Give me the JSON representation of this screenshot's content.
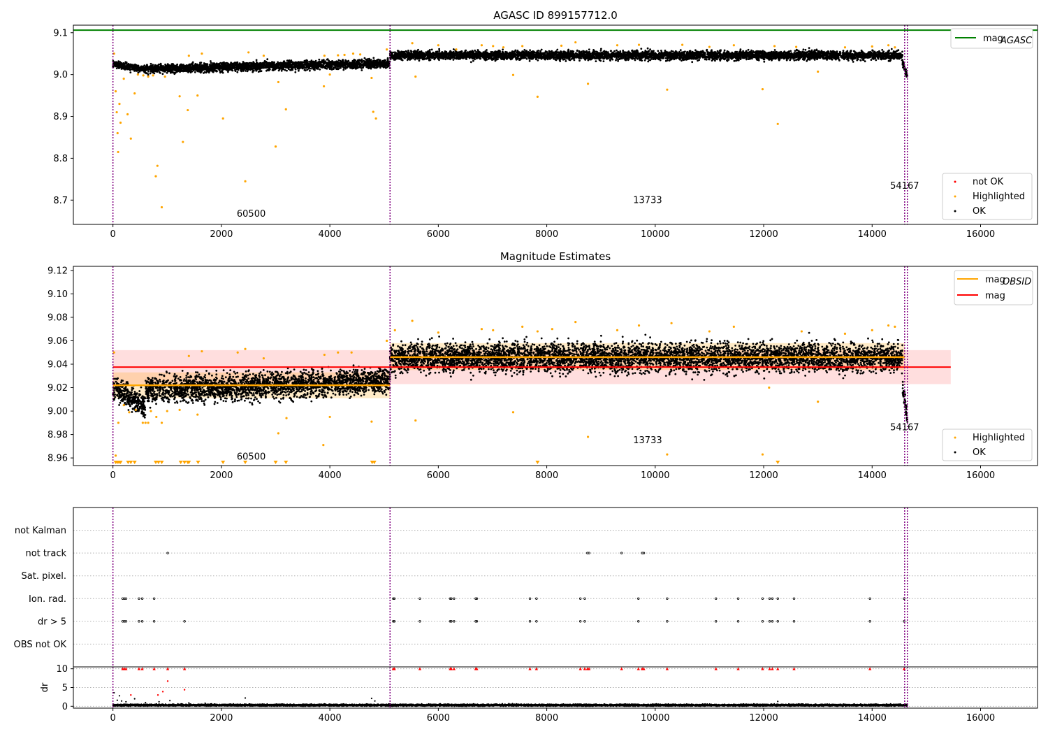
{
  "chart_data": [
    {
      "type": "scatter",
      "title": "AGASC ID 899157712.0",
      "xlim": [
        -730,
        17050
      ],
      "ylim": [
        8.642,
        9.118
      ],
      "xticks": [
        0,
        2000,
        4000,
        6000,
        8000,
        10000,
        12000,
        14000,
        16000
      ],
      "yticks": [
        8.7,
        8.8,
        8.9,
        9.0,
        9.1
      ],
      "ytick_labels": [
        "8.7",
        "8.8",
        "8.9",
        "9.0",
        "9.1"
      ],
      "reference_line": {
        "name": "mag_AGASC",
        "y": 9.106,
        "x": [
          -730,
          17050
        ],
        "color": "#008000"
      },
      "obsid_boundaries": [
        0,
        5110,
        14600,
        14650
      ],
      "obsid_labels": [
        {
          "text": "60500",
          "x": 2550,
          "y": 8.66
        },
        {
          "text": "13733",
          "x": 9860,
          "y": 8.693
        },
        {
          "text": "54167",
          "x": 14600,
          "y": 8.727
        }
      ],
      "series": [
        {
          "name": "OK",
          "color": "#000000",
          "segments": [
            {
              "x": [
                0,
                600
              ],
              "y_start": 9.025,
              "y_end": 9.012,
              "spread": 0.018
            },
            {
              "x": [
                600,
                5110
              ],
              "y_start": 9.014,
              "y_end": 9.027,
              "spread": 0.022
            },
            {
              "x": [
                5110,
                14560
              ],
              "y_start": 9.046,
              "y_end": 9.046,
              "spread": 0.022
            },
            {
              "x": [
                14560,
                14650
              ],
              "y_start": 9.03,
              "y_end": 8.995,
              "spread": 0.015
            }
          ]
        },
        {
          "name": "Highlighted",
          "color": "#ffa500",
          "points": [
            [
              20,
              9.05
            ],
            [
              50,
              8.96
            ],
            [
              70,
              8.91
            ],
            [
              85,
              8.86
            ],
            [
              95,
              8.815
            ],
            [
              120,
              8.93
            ],
            [
              140,
              8.885
            ],
            [
              200,
              8.99
            ],
            [
              270,
              8.905
            ],
            [
              330,
              8.847
            ],
            [
              400,
              8.955
            ],
            [
              460,
              9.0
            ],
            [
              560,
              8.998
            ],
            [
              650,
              8.995
            ],
            [
              740,
              8.998
            ],
            [
              790,
              8.757
            ],
            [
              820,
              8.782
            ],
            [
              900,
              8.683
            ],
            [
              960,
              8.995
            ],
            [
              1230,
              8.948
            ],
            [
              1290,
              8.839
            ],
            [
              1380,
              8.915
            ],
            [
              1400,
              9.045
            ],
            [
              1560,
              8.95
            ],
            [
              1640,
              9.05
            ],
            [
              2030,
              8.895
            ],
            [
              2440,
              8.745
            ],
            [
              2500,
              9.053
            ],
            [
              2780,
              9.045
            ],
            [
              3000,
              8.828
            ],
            [
              3050,
              8.982
            ],
            [
              3190,
              8.917
            ],
            [
              3890,
              8.972
            ],
            [
              3900,
              9.045
            ],
            [
              4000,
              9.0
            ],
            [
              4150,
              9.046
            ],
            [
              4270,
              9.047
            ],
            [
              4430,
              9.05
            ],
            [
              4560,
              9.048
            ],
            [
              4770,
              8.992
            ],
            [
              4800,
              8.911
            ],
            [
              4850,
              8.895
            ],
            [
              5050,
              9.06
            ],
            [
              5520,
              9.075
            ],
            [
              5580,
              8.995
            ],
            [
              6000,
              9.07
            ],
            [
              6330,
              9.06
            ],
            [
              6800,
              9.07
            ],
            [
              7010,
              9.068
            ],
            [
              7200,
              9.065
            ],
            [
              7380,
              8.999
            ],
            [
              7550,
              9.068
            ],
            [
              7830,
              8.947
            ],
            [
              8270,
              9.069
            ],
            [
              8530,
              9.077
            ],
            [
              8760,
              8.978
            ],
            [
              9300,
              9.07
            ],
            [
              9700,
              9.071
            ],
            [
              10220,
              8.964
            ],
            [
              10500,
              9.071
            ],
            [
              11000,
              9.066
            ],
            [
              11450,
              9.07
            ],
            [
              11980,
              8.965
            ],
            [
              12200,
              9.068
            ],
            [
              12260,
              8.882
            ],
            [
              12600,
              9.066
            ],
            [
              13000,
              9.007
            ],
            [
              13500,
              9.065
            ],
            [
              14000,
              9.067
            ],
            [
              14300,
              9.07
            ],
            [
              14420,
              9.065
            ]
          ]
        },
        {
          "name": "not OK",
          "color": "#ff0000",
          "points": []
        }
      ],
      "legends": [
        {
          "position": "upper right",
          "entries": [
            {
              "label": "mag",
              "sub": "AGASC",
              "style": "line",
              "color": "#008000"
            }
          ]
        },
        {
          "position": "lower right",
          "entries": [
            {
              "label": "not OK",
              "style": "marker",
              "color": "#ff0000"
            },
            {
              "label": "Highlighted",
              "style": "marker",
              "color": "#ffa500"
            },
            {
              "label": "OK",
              "style": "marker",
              "color": "#000000"
            }
          ]
        }
      ]
    },
    {
      "type": "scatter",
      "title": "Magnitude Estimates",
      "xlim": [
        -730,
        17050
      ],
      "ylim": [
        8.9535,
        9.1235
      ],
      "xticks": [
        0,
        2000,
        4000,
        6000,
        8000,
        10000,
        12000,
        14000,
        16000
      ],
      "yticks": [
        8.96,
        8.98,
        9.0,
        9.02,
        9.04,
        9.06,
        9.08,
        9.1,
        9.12
      ],
      "ytick_labels": [
        "8.96",
        "8.98",
        "9.00",
        "9.02",
        "9.04",
        "9.06",
        "9.08",
        "9.10",
        "9.12"
      ],
      "mag_line": {
        "name": "mag",
        "y": 9.0375,
        "x": [
          0,
          15450
        ],
        "color": "#ff0000"
      },
      "mag_band": {
        "y": [
          9.023,
          9.052
        ],
        "x": [
          0,
          15450
        ],
        "color": "#ff0000"
      },
      "mag_obsid": [
        {
          "x": [
            0,
            5110
          ],
          "y": 9.022,
          "band": [
            9.011,
            9.033
          ]
        },
        {
          "x": [
            5110,
            14600
          ],
          "y": 9.046,
          "band": [
            9.035,
            9.058
          ]
        }
      ],
      "obsid_boundaries": [
        0,
        5110,
        14600,
        14650
      ],
      "obsid_labels": [
        {
          "text": "60500",
          "x": 2550,
          "y": 8.9585
        },
        {
          "text": "13733",
          "x": 9860,
          "y": 8.9725
        },
        {
          "text": "54167",
          "x": 14600,
          "y": 8.9835
        }
      ],
      "series": [
        {
          "name": "OK",
          "color": "#000000",
          "segments": [
            {
              "x": [
                0,
                600
              ],
              "y_start": 9.02,
              "y_end": 9.005,
              "spread": 0.022
            },
            {
              "x": [
                600,
                5110
              ],
              "y_start": 9.018,
              "y_end": 9.026,
              "spread": 0.024
            },
            {
              "x": [
                5110,
                14560
              ],
              "y_start": 9.046,
              "y_end": 9.046,
              "spread": 0.026
            },
            {
              "x": [
                14560,
                14650
              ],
              "y_start": 9.02,
              "y_end": 8.995,
              "spread": 0.015
            }
          ]
        },
        {
          "name": "Highlighted",
          "color": "#ffa500",
          "points": [
            [
              20,
              9.05
            ],
            [
              50,
              8.962
            ],
            [
              100,
              8.99
            ],
            [
              200,
              9.005
            ],
            [
              300,
              8.999
            ],
            [
              420,
              9.001
            ],
            [
              550,
              8.99
            ],
            [
              600,
              8.99
            ],
            [
              650,
              8.99
            ],
            [
              700,
              9.0
            ],
            [
              800,
              8.995
            ],
            [
              900,
              8.99
            ],
            [
              1000,
              9.0
            ],
            [
              1230,
              9.001
            ],
            [
              1400,
              9.047
            ],
            [
              1560,
              8.997
            ],
            [
              1640,
              9.051
            ],
            [
              2300,
              9.05
            ],
            [
              2440,
              9.053
            ],
            [
              2780,
              9.045
            ],
            [
              3050,
              8.981
            ],
            [
              3200,
              8.994
            ],
            [
              3880,
              8.971
            ],
            [
              3900,
              9.048
            ],
            [
              4000,
              8.995
            ],
            [
              4150,
              9.05
            ],
            [
              4400,
              9.05
            ],
            [
              4770,
              8.991
            ],
            [
              5050,
              9.06
            ],
            [
              5200,
              9.069
            ],
            [
              5520,
              9.077
            ],
            [
              5580,
              8.992
            ],
            [
              6000,
              9.067
            ],
            [
              6800,
              9.07
            ],
            [
              7010,
              9.069
            ],
            [
              7380,
              8.999
            ],
            [
              7550,
              9.072
            ],
            [
              7830,
              9.068
            ],
            [
              8100,
              9.07
            ],
            [
              8530,
              9.076
            ],
            [
              8760,
              8.978
            ],
            [
              9300,
              9.069
            ],
            [
              9700,
              9.073
            ],
            [
              10220,
              8.963
            ],
            [
              10300,
              9.075
            ],
            [
              11000,
              9.068
            ],
            [
              11450,
              9.072
            ],
            [
              11980,
              8.963
            ],
            [
              12100,
              9.02
            ],
            [
              12700,
              9.068
            ],
            [
              13000,
              9.008
            ],
            [
              13500,
              9.066
            ],
            [
              14000,
              9.069
            ],
            [
              14300,
              9.073
            ],
            [
              14420,
              9.072
            ]
          ]
        },
        {
          "name": "below range",
          "color": "#ffa500",
          "marker": "triangle-down",
          "x": [
            50,
            80,
            110,
            140,
            280,
            330,
            400,
            790,
            840,
            900,
            1250,
            1320,
            1380,
            1400,
            1570,
            2030,
            2440,
            3000,
            3190,
            4780,
            4820,
            7830,
            12260
          ]
        }
      ],
      "legends": [
        {
          "position": "upper right",
          "entries": [
            {
              "label": "mag",
              "sub": "OBSID",
              "style": "line",
              "color": "#ffa500"
            },
            {
              "label": "mag",
              "sub": "",
              "style": "line",
              "color": "#ff0000"
            }
          ]
        },
        {
          "position": "lower right",
          "entries": [
            {
              "label": "Highlighted",
              "style": "marker",
              "color": "#ffa500"
            },
            {
              "label": "OK",
              "style": "marker",
              "color": "#000000"
            }
          ]
        }
      ]
    },
    {
      "type": "scatter",
      "xlim": [
        -730,
        17050
      ],
      "xticks": [
        0,
        2000,
        4000,
        6000,
        8000,
        10000,
        12000,
        14000,
        16000
      ],
      "flag_rows": [
        "OBS not OK",
        "dr > 5",
        "Ion. rad.",
        "Sat. pixel.",
        "not track",
        "not Kalman"
      ],
      "flag_events": {
        "not Kalman": [],
        "not track": [
          1010,
          8750,
          8780,
          9380,
          9760,
          9790
        ],
        "Sat. pixel.": [],
        "Ion. rad.": [
          180,
          210,
          240,
          480,
          540,
          760,
          5170,
          5190,
          5660,
          6220,
          6240,
          6290,
          6690,
          6710,
          7690,
          7810,
          8620,
          8700,
          9690,
          10220,
          11120,
          11530,
          11980,
          12110,
          12160,
          12260,
          12560,
          13960,
          14590
        ],
        "dr > 5": [
          180,
          210,
          240,
          480,
          540,
          760,
          1320,
          5170,
          5190,
          5660,
          6220,
          6240,
          6290,
          6690,
          6710,
          7690,
          7810,
          8620,
          8700,
          9690,
          10220,
          11120,
          11530,
          11980,
          12110,
          12160,
          12260,
          12560,
          13960,
          14590
        ],
        "OBS not OK": []
      },
      "dr": {
        "ylabel": "dr",
        "yticks": [
          0,
          5,
          10
        ],
        "ylim": [
          -0.5,
          10.5
        ],
        "clip_value": 10,
        "baseline": {
          "y": 0.3,
          "spread": 0.35
        },
        "black_points": [
          [
            20,
            3.6
          ],
          [
            80,
            1.6
          ],
          [
            120,
            2.8
          ],
          [
            160,
            1.4
          ],
          [
            240,
            1.2
          ],
          [
            400,
            2.0
          ],
          [
            600,
            1.0
          ],
          [
            850,
            1.2
          ],
          [
            1050,
            1.5
          ],
          [
            1400,
            0.9
          ],
          [
            1700,
            0.8
          ],
          [
            2440,
            2.2
          ],
          [
            4770,
            2.1
          ],
          [
            4830,
            1.4
          ],
          [
            12260,
            1.3
          ]
        ],
        "red_points": [
          [
            330,
            3.0
          ],
          [
            830,
            3.0
          ],
          [
            920,
            3.9
          ],
          [
            1010,
            6.7
          ],
          [
            1320,
            4.4
          ]
        ],
        "red_clipped": [
          180,
          210,
          240,
          480,
          540,
          760,
          1010,
          1320,
          5170,
          5190,
          5660,
          6220,
          6240,
          6290,
          6690,
          6710,
          7690,
          7810,
          8620,
          8700,
          8750,
          8780,
          9380,
          9690,
          9760,
          9790,
          10220,
          11120,
          11530,
          11980,
          12110,
          12160,
          12260,
          12560,
          13960,
          14590
        ]
      },
      "obsid_boundaries": [
        0,
        5110,
        14600,
        14650
      ]
    }
  ]
}
